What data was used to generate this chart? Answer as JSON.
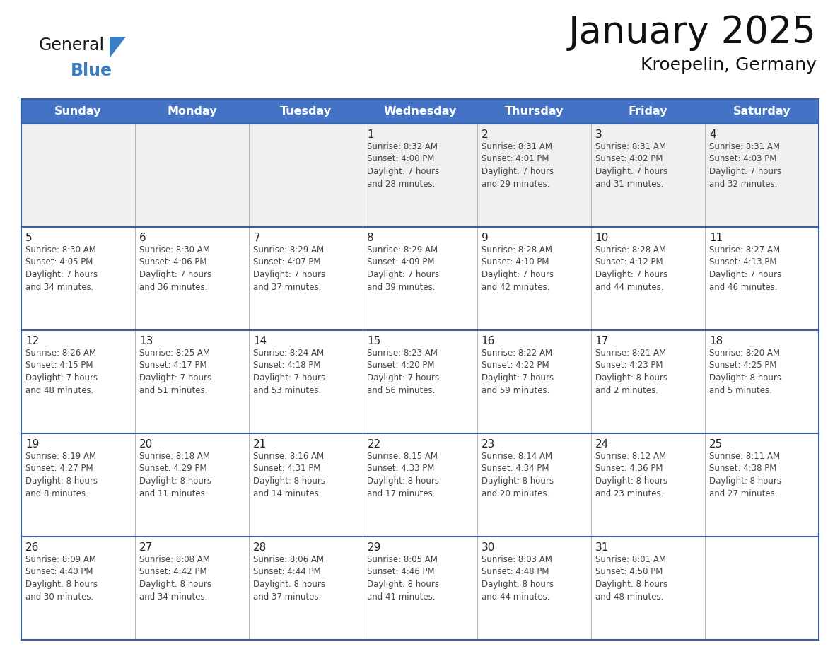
{
  "title": "January 2025",
  "subtitle": "Kroepelin, Germany",
  "days_of_week": [
    "Sunday",
    "Monday",
    "Tuesday",
    "Wednesday",
    "Thursday",
    "Friday",
    "Saturday"
  ],
  "header_bg": "#4472C4",
  "header_text": "#FFFFFF",
  "cell_bg_normal": "#FFFFFF",
  "cell_bg_gray": "#F0F0F0",
  "border_color": "#3A5FA0",
  "inner_border_color": "#AAAAAA",
  "text_color": "#333333",
  "day_num_color": "#222222",
  "logo_color_general": "#1a1a1a",
  "logo_color_blue": "#3A7EC6",
  "calendar_data": [
    [
      {
        "day": "",
        "info": ""
      },
      {
        "day": "",
        "info": ""
      },
      {
        "day": "",
        "info": ""
      },
      {
        "day": "1",
        "info": "Sunrise: 8:32 AM\nSunset: 4:00 PM\nDaylight: 7 hours\nand 28 minutes."
      },
      {
        "day": "2",
        "info": "Sunrise: 8:31 AM\nSunset: 4:01 PM\nDaylight: 7 hours\nand 29 minutes."
      },
      {
        "day": "3",
        "info": "Sunrise: 8:31 AM\nSunset: 4:02 PM\nDaylight: 7 hours\nand 31 minutes."
      },
      {
        "day": "4",
        "info": "Sunrise: 8:31 AM\nSunset: 4:03 PM\nDaylight: 7 hours\nand 32 minutes."
      }
    ],
    [
      {
        "day": "5",
        "info": "Sunrise: 8:30 AM\nSunset: 4:05 PM\nDaylight: 7 hours\nand 34 minutes."
      },
      {
        "day": "6",
        "info": "Sunrise: 8:30 AM\nSunset: 4:06 PM\nDaylight: 7 hours\nand 36 minutes."
      },
      {
        "day": "7",
        "info": "Sunrise: 8:29 AM\nSunset: 4:07 PM\nDaylight: 7 hours\nand 37 minutes."
      },
      {
        "day": "8",
        "info": "Sunrise: 8:29 AM\nSunset: 4:09 PM\nDaylight: 7 hours\nand 39 minutes."
      },
      {
        "day": "9",
        "info": "Sunrise: 8:28 AM\nSunset: 4:10 PM\nDaylight: 7 hours\nand 42 minutes."
      },
      {
        "day": "10",
        "info": "Sunrise: 8:28 AM\nSunset: 4:12 PM\nDaylight: 7 hours\nand 44 minutes."
      },
      {
        "day": "11",
        "info": "Sunrise: 8:27 AM\nSunset: 4:13 PM\nDaylight: 7 hours\nand 46 minutes."
      }
    ],
    [
      {
        "day": "12",
        "info": "Sunrise: 8:26 AM\nSunset: 4:15 PM\nDaylight: 7 hours\nand 48 minutes."
      },
      {
        "day": "13",
        "info": "Sunrise: 8:25 AM\nSunset: 4:17 PM\nDaylight: 7 hours\nand 51 minutes."
      },
      {
        "day": "14",
        "info": "Sunrise: 8:24 AM\nSunset: 4:18 PM\nDaylight: 7 hours\nand 53 minutes."
      },
      {
        "day": "15",
        "info": "Sunrise: 8:23 AM\nSunset: 4:20 PM\nDaylight: 7 hours\nand 56 minutes."
      },
      {
        "day": "16",
        "info": "Sunrise: 8:22 AM\nSunset: 4:22 PM\nDaylight: 7 hours\nand 59 minutes."
      },
      {
        "day": "17",
        "info": "Sunrise: 8:21 AM\nSunset: 4:23 PM\nDaylight: 8 hours\nand 2 minutes."
      },
      {
        "day": "18",
        "info": "Sunrise: 8:20 AM\nSunset: 4:25 PM\nDaylight: 8 hours\nand 5 minutes."
      }
    ],
    [
      {
        "day": "19",
        "info": "Sunrise: 8:19 AM\nSunset: 4:27 PM\nDaylight: 8 hours\nand 8 minutes."
      },
      {
        "day": "20",
        "info": "Sunrise: 8:18 AM\nSunset: 4:29 PM\nDaylight: 8 hours\nand 11 minutes."
      },
      {
        "day": "21",
        "info": "Sunrise: 8:16 AM\nSunset: 4:31 PM\nDaylight: 8 hours\nand 14 minutes."
      },
      {
        "day": "22",
        "info": "Sunrise: 8:15 AM\nSunset: 4:33 PM\nDaylight: 8 hours\nand 17 minutes."
      },
      {
        "day": "23",
        "info": "Sunrise: 8:14 AM\nSunset: 4:34 PM\nDaylight: 8 hours\nand 20 minutes."
      },
      {
        "day": "24",
        "info": "Sunrise: 8:12 AM\nSunset: 4:36 PM\nDaylight: 8 hours\nand 23 minutes."
      },
      {
        "day": "25",
        "info": "Sunrise: 8:11 AM\nSunset: 4:38 PM\nDaylight: 8 hours\nand 27 minutes."
      }
    ],
    [
      {
        "day": "26",
        "info": "Sunrise: 8:09 AM\nSunset: 4:40 PM\nDaylight: 8 hours\nand 30 minutes."
      },
      {
        "day": "27",
        "info": "Sunrise: 8:08 AM\nSunset: 4:42 PM\nDaylight: 8 hours\nand 34 minutes."
      },
      {
        "day": "28",
        "info": "Sunrise: 8:06 AM\nSunset: 4:44 PM\nDaylight: 8 hours\nand 37 minutes."
      },
      {
        "day": "29",
        "info": "Sunrise: 8:05 AM\nSunset: 4:46 PM\nDaylight: 8 hours\nand 41 minutes."
      },
      {
        "day": "30",
        "info": "Sunrise: 8:03 AM\nSunset: 4:48 PM\nDaylight: 8 hours\nand 44 minutes."
      },
      {
        "day": "31",
        "info": "Sunrise: 8:01 AM\nSunset: 4:50 PM\nDaylight: 8 hours\nand 48 minutes."
      },
      {
        "day": "",
        "info": ""
      }
    ]
  ]
}
